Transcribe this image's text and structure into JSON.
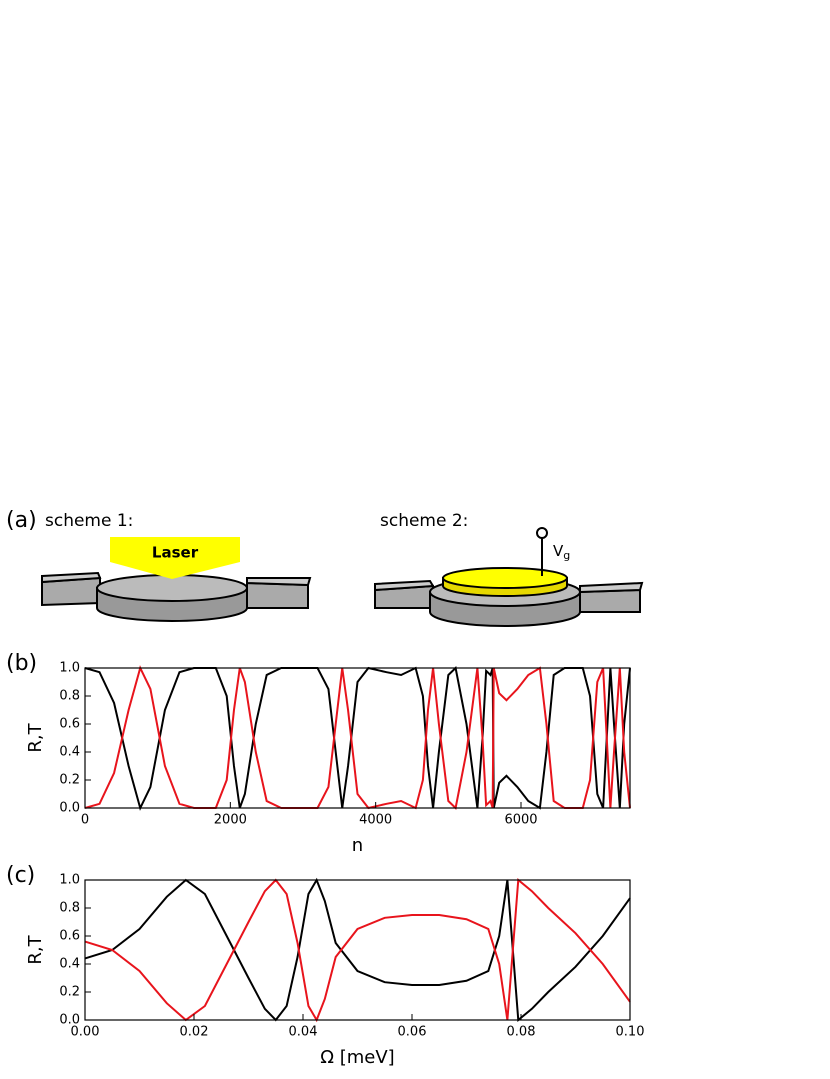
{
  "panel_a": {
    "label": "(a)",
    "scheme1": "scheme 1:",
    "laser": "Laser",
    "scheme2": "scheme 2:",
    "vg": {
      "main": "V",
      "sub": "g"
    }
  },
  "chart_data": [
    {
      "type": "line",
      "panel_label": "(b)",
      "y_label": "R,T",
      "x_label": "n",
      "xlim": [
        0,
        7500
      ],
      "xticks": [
        0,
        2000,
        4000,
        6000
      ],
      "ylim": [
        0,
        1
      ],
      "yticks": [
        {
          "value": 0,
          "label": "0.0"
        },
        0.2,
        0.4,
        0.6,
        0.8,
        {
          "value": 1,
          "label": "1.0"
        }
      ],
      "x": [
        0,
        200,
        400,
        600,
        760,
        900,
        1100,
        1300,
        1500,
        1800,
        1950,
        2050,
        2130,
        2200,
        2350,
        2500,
        2700,
        3000,
        3200,
        3350,
        3450,
        3540,
        3620,
        3750,
        3900,
        4150,
        4350,
        4550,
        4650,
        4720,
        4790,
        4870,
        5000,
        5100,
        5250,
        5400,
        5470,
        5520,
        5580,
        5610,
        5625,
        5700,
        5800,
        5950,
        6100,
        6260,
        6350,
        6450,
        6600,
        6850,
        6950,
        7050,
        7130,
        7180,
        7230,
        7280,
        7360,
        7420,
        7500
      ],
      "series": [
        {
          "color": "#000000",
          "values": [
            1.0,
            0.97,
            0.75,
            0.3,
            0.0,
            0.15,
            0.7,
            0.97,
            1.0,
            1.0,
            0.8,
            0.3,
            0.0,
            0.1,
            0.6,
            0.95,
            1.0,
            1.0,
            1.0,
            0.85,
            0.4,
            0.0,
            0.3,
            0.9,
            1.0,
            0.97,
            0.95,
            1.0,
            0.8,
            0.3,
            0.0,
            0.4,
            0.95,
            1.0,
            0.6,
            0.0,
            0.5,
            0.98,
            0.95,
            1.0,
            0.0,
            0.18,
            0.23,
            0.15,
            0.05,
            0.0,
            0.4,
            0.95,
            1.0,
            1.0,
            0.8,
            0.1,
            0.0,
            0.5,
            1.0,
            0.6,
            0.0,
            0.6,
            1.0
          ]
        },
        {
          "color": "#e8141c",
          "values": [
            0.0,
            0.03,
            0.25,
            0.7,
            1.0,
            0.85,
            0.3,
            0.03,
            0.0,
            0.0,
            0.2,
            0.7,
            1.0,
            0.9,
            0.4,
            0.05,
            0.0,
            0.0,
            0.0,
            0.15,
            0.6,
            1.0,
            0.7,
            0.1,
            0.0,
            0.03,
            0.05,
            0.0,
            0.2,
            0.7,
            1.0,
            0.6,
            0.05,
            0.0,
            0.4,
            1.0,
            0.5,
            0.02,
            0.05,
            0.0,
            1.0,
            0.82,
            0.77,
            0.85,
            0.95,
            1.0,
            0.6,
            0.05,
            0.0,
            0.0,
            0.2,
            0.9,
            1.0,
            0.5,
            0.0,
            0.4,
            1.0,
            0.4,
            0.0
          ]
        }
      ]
    },
    {
      "type": "line",
      "panel_label": "(c)",
      "y_label": "R,T",
      "x_label": "Ω [meV]",
      "xlim": [
        0,
        0.1
      ],
      "xticks": [
        {
          "value": 0,
          "label": "0.00"
        },
        0.02,
        0.04,
        0.06,
        0.08,
        {
          "value": 0.1,
          "label": "0.10"
        }
      ],
      "ylim": [
        0,
        1
      ],
      "yticks": [
        {
          "value": 0,
          "label": "0.0"
        },
        0.2,
        0.4,
        0.6,
        0.8,
        {
          "value": 1,
          "label": "1.0"
        }
      ],
      "x": [
        0,
        0.005,
        0.01,
        0.015,
        0.0185,
        0.022,
        0.026,
        0.03,
        0.033,
        0.035,
        0.037,
        0.039,
        0.041,
        0.0425,
        0.044,
        0.046,
        0.05,
        0.055,
        0.06,
        0.065,
        0.07,
        0.074,
        0.076,
        0.0775,
        0.0785,
        0.0795,
        0.082,
        0.085,
        0.09,
        0.095,
        0.1
      ],
      "series": [
        {
          "color": "#000000",
          "values": [
            0.44,
            0.5,
            0.65,
            0.88,
            1.0,
            0.9,
            0.6,
            0.3,
            0.08,
            0.0,
            0.1,
            0.45,
            0.9,
            1.0,
            0.85,
            0.55,
            0.35,
            0.27,
            0.25,
            0.25,
            0.28,
            0.35,
            0.6,
            1.0,
            0.5,
            0.0,
            0.08,
            0.2,
            0.38,
            0.6,
            0.87
          ]
        },
        {
          "color": "#e8141c",
          "values": [
            0.56,
            0.5,
            0.35,
            0.12,
            0.0,
            0.1,
            0.4,
            0.7,
            0.92,
            1.0,
            0.9,
            0.55,
            0.1,
            0.0,
            0.15,
            0.45,
            0.65,
            0.73,
            0.75,
            0.75,
            0.72,
            0.65,
            0.4,
            0.0,
            0.5,
            1.0,
            0.92,
            0.8,
            0.62,
            0.4,
            0.13
          ]
        }
      ]
    }
  ]
}
